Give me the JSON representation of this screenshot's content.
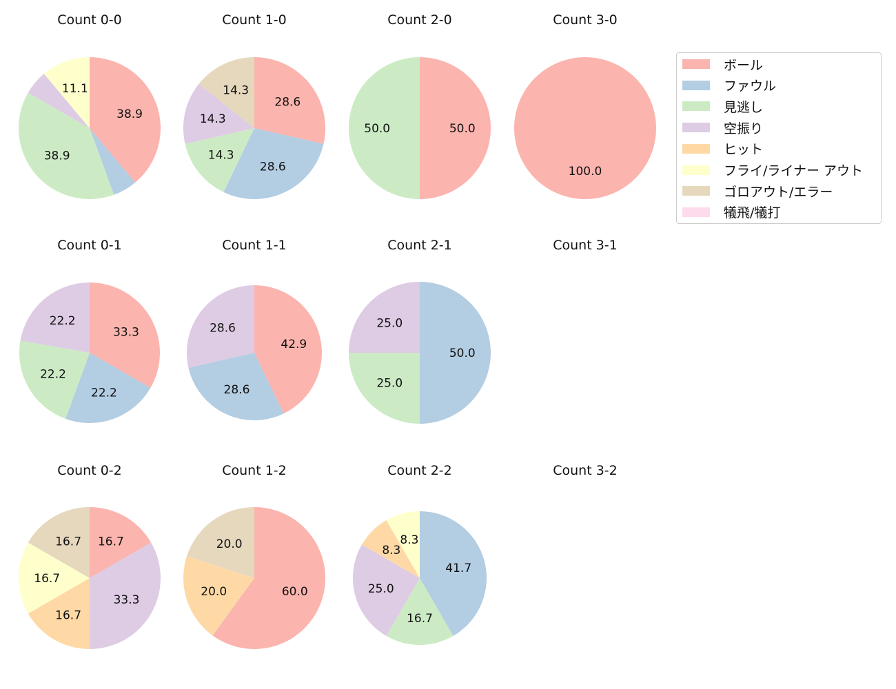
{
  "chart_data": {
    "type": "pie",
    "categories": [
      "ボール",
      "ファウル",
      "見逃し",
      "空振り",
      "ヒット",
      "フライ/ライナー アウト",
      "ゴロアウト/エラー",
      "犠飛/犠打"
    ],
    "colors": [
      "#fbb4ae",
      "#b3cde3",
      "#ccebc5",
      "#decbe4",
      "#fed9a6",
      "#ffffcc",
      "#e5d8bd",
      "#fddaec"
    ],
    "charts": [
      {
        "title": "Count 0-0",
        "values": [
          7,
          1,
          7,
          1,
          0,
          2,
          0,
          0
        ],
        "labels": [
          "38.9",
          "",
          "38.9",
          "",
          "",
          "11.1",
          "",
          ""
        ]
      },
      {
        "title": "Count 1-0",
        "values": [
          2,
          2,
          1,
          1,
          0,
          0,
          1,
          0
        ],
        "labels": [
          "28.6",
          "28.6",
          "14.3",
          "14.3",
          "",
          "",
          "14.3",
          ""
        ]
      },
      {
        "title": "Count 2-0",
        "values": [
          1,
          0,
          1,
          0,
          0,
          0,
          0,
          0
        ],
        "labels": [
          "50.0",
          "",
          "50.0",
          "",
          "",
          "",
          "",
          ""
        ]
      },
      {
        "title": "Count 3-0",
        "values": [
          1,
          0,
          0,
          0,
          0,
          0,
          0,
          0
        ],
        "labels": [
          "100.0",
          "",
          "",
          "",
          "",
          "",
          "",
          ""
        ]
      },
      {
        "title": "Count 0-1",
        "values": [
          3,
          2,
          2,
          2,
          0,
          0,
          0,
          0
        ],
        "labels": [
          "33.3",
          "22.2",
          "22.2",
          "22.2",
          "",
          "",
          "",
          ""
        ]
      },
      {
        "title": "Count 1-1",
        "values": [
          3,
          2,
          0,
          2,
          0,
          0,
          0,
          0
        ],
        "labels": [
          "42.9",
          "28.6",
          "",
          "28.6",
          "",
          "",
          "",
          ""
        ]
      },
      {
        "title": "Count 2-1",
        "values": [
          0,
          2,
          1,
          1,
          0,
          0,
          0,
          0
        ],
        "labels": [
          "",
          "50.0",
          "25.0",
          "25.0",
          "",
          "",
          "",
          ""
        ]
      },
      {
        "title": "Count 3-1",
        "values": [],
        "labels": []
      },
      {
        "title": "Count 0-2",
        "values": [
          1,
          0,
          0,
          2,
          1,
          1,
          1,
          0
        ],
        "labels": [
          "16.7",
          "",
          "",
          "33.3",
          "16.7",
          "16.7",
          "16.7",
          ""
        ]
      },
      {
        "title": "Count 1-2",
        "values": [
          3,
          0,
          0,
          0,
          1,
          0,
          1,
          0
        ],
        "labels": [
          "60.0",
          "",
          "",
          "",
          "20.0",
          "",
          "20.0",
          ""
        ]
      },
      {
        "title": "Count 2-2",
        "values": [
          0,
          5,
          2,
          3,
          1,
          1,
          0,
          0
        ],
        "labels": [
          "",
          "41.7",
          "16.7",
          "25.0",
          "8.3",
          "8.3",
          "",
          ""
        ]
      },
      {
        "title": "Count 3-2",
        "values": [],
        "labels": []
      }
    ],
    "legend_position": "upper-right"
  }
}
